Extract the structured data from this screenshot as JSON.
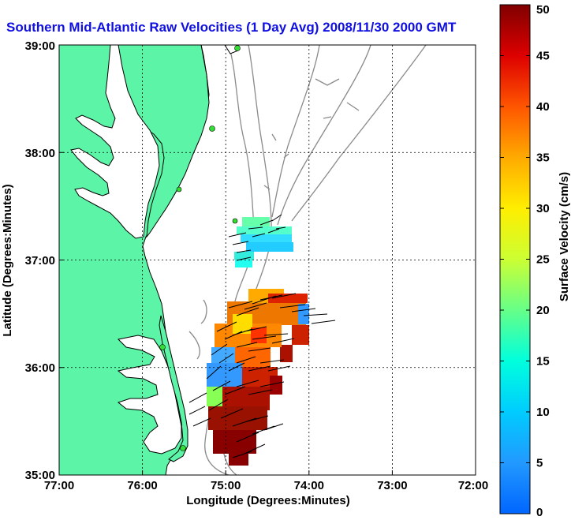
{
  "title": "Southern Mid-Atlantic Raw Velocities (1 Day Avg) 2008/11/30 2000 GMT",
  "map": {
    "xlabel": "Longitude (Degrees:Minutes)",
    "ylabel": "Latitude (Degrees:Minutes)",
    "lon_ticks": [
      "77:00",
      "76:00",
      "75:00",
      "74:00",
      "73:00",
      "72:00"
    ],
    "lat_ticks": [
      "39:00",
      "38:00",
      "37:00",
      "36:00",
      "35:00"
    ],
    "lon_range": [
      -77,
      -72
    ],
    "lat_range": [
      35,
      39
    ],
    "grid": "dotted",
    "land_color": "#5cf5a8",
    "coast_color": "#000000",
    "bathymetry_color": "#888888",
    "station_color": "#33dd33"
  },
  "colorbar": {
    "label": "Surface Velocity (cm/s)",
    "ticks": [
      "0",
      "5",
      "10",
      "15",
      "20",
      "25",
      "30",
      "35",
      "40",
      "45",
      "50"
    ],
    "range": [
      0,
      50
    ]
  }
}
